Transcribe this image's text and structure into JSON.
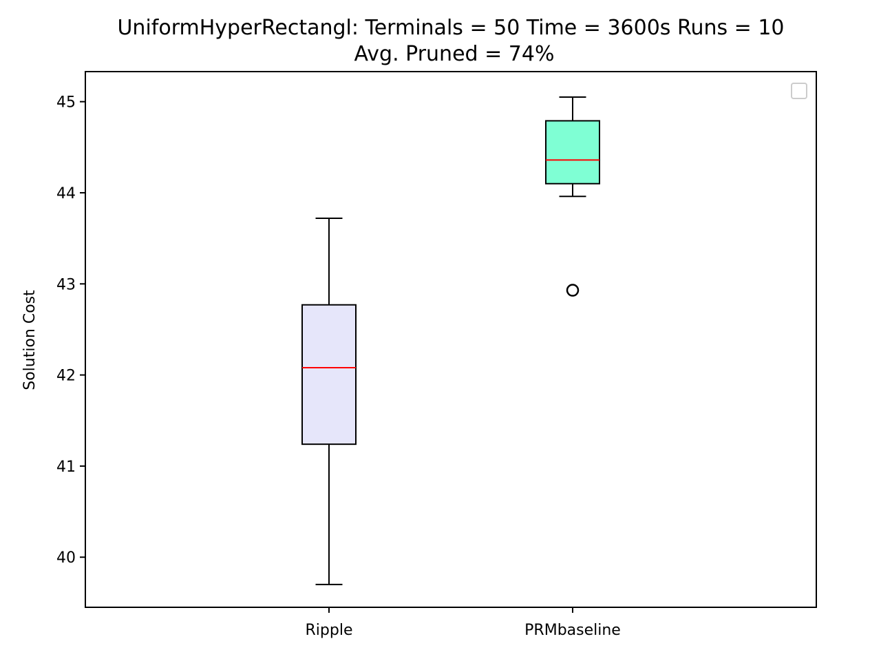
{
  "chart_data": {
    "type": "box",
    "title_lines": [
      "UniformHyperRectangl:  Terminals = 50  Time = 3600s  Runs = 10",
      "Avg. Pruned = 74%"
    ],
    "xlabel": "",
    "ylabel": "Solution Cost",
    "ylim": [
      39.45,
      45.33
    ],
    "yticks": [
      40,
      41,
      42,
      43,
      44,
      45
    ],
    "grid": false,
    "legend": {
      "placement": "top-right",
      "entries": []
    },
    "categories": [
      "Ripple",
      "PRMbaseline"
    ],
    "boxes": [
      {
        "category": "Ripple",
        "whisker_low": 39.7,
        "q1": 41.24,
        "median": 42.08,
        "q3": 42.77,
        "whisker_high": 43.72,
        "outliers": [],
        "fill": "#e6e6fa"
      },
      {
        "category": "PRMbaseline",
        "whisker_low": 43.96,
        "q1": 44.1,
        "median": 44.36,
        "q3": 44.79,
        "whisker_high": 45.05,
        "outliers": [
          42.93
        ],
        "fill": "#7fffd4"
      }
    ],
    "colors": {
      "median": "#ff0000",
      "box_edge": "#000000",
      "legend_edge": "#cccccc"
    }
  }
}
